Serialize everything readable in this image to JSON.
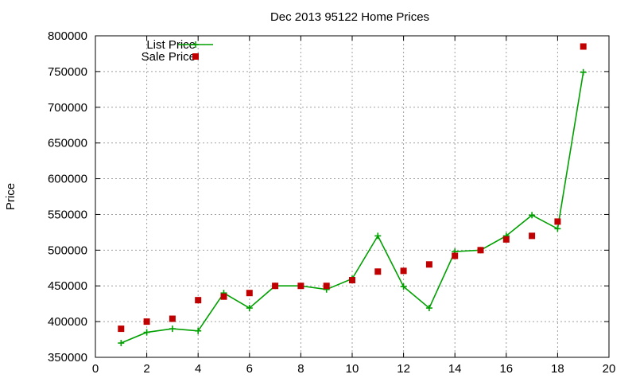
{
  "chart_data": {
    "type": "scatter",
    "title": "Dec 2013 95122 Home Prices",
    "xlabel": "",
    "ylabel": "Price",
    "xlim": [
      0,
      20
    ],
    "ylim": [
      350000,
      800000
    ],
    "xticks": [
      0,
      2,
      4,
      6,
      8,
      10,
      12,
      14,
      16,
      18,
      20
    ],
    "yticks": [
      350000,
      400000,
      450000,
      500000,
      550000,
      600000,
      650000,
      700000,
      750000,
      800000
    ],
    "grid": true,
    "legend_position": "top-left",
    "series": [
      {
        "name": "List Price",
        "style": "line-with-plus-markers",
        "color": "#00a000",
        "x": [
          1,
          2,
          3,
          4,
          5,
          6,
          7,
          8,
          9,
          10,
          11,
          12,
          13,
          14,
          15,
          16,
          17,
          18,
          19
        ],
        "values": [
          370000,
          385000,
          390000,
          387000,
          440000,
          419000,
          450000,
          450000,
          445000,
          460000,
          520000,
          449000,
          419000,
          498000,
          500000,
          520000,
          549000,
          530000,
          749000
        ]
      },
      {
        "name": "Sale Price",
        "style": "square-markers",
        "color": "#c00000",
        "x": [
          1,
          2,
          3,
          4,
          5,
          6,
          7,
          8,
          9,
          10,
          11,
          12,
          13,
          14,
          15,
          16,
          17,
          18,
          19
        ],
        "values": [
          390000,
          400000,
          404000,
          430000,
          435000,
          440000,
          450000,
          450000,
          450000,
          458000,
          470000,
          471000,
          480000,
          492000,
          500000,
          515000,
          520000,
          540000,
          785000
        ]
      }
    ]
  }
}
